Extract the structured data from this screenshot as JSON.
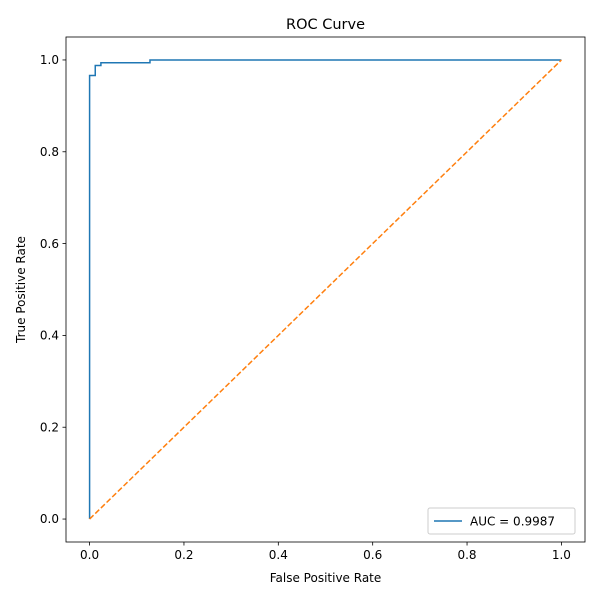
{
  "chart_data": {
    "type": "line",
    "title": "ROC Curve",
    "xlabel": "False Positive Rate",
    "ylabel": "True Positive Rate",
    "xlim": [
      -0.05,
      1.05
    ],
    "ylim": [
      -0.05,
      1.05
    ],
    "x_ticks": [
      0.0,
      0.2,
      0.4,
      0.6,
      0.8,
      1.0
    ],
    "x_tick_labels": [
      "0.0",
      "0.2",
      "0.4",
      "0.6",
      "0.8",
      "1.0"
    ],
    "y_ticks": [
      0.0,
      0.2,
      0.4,
      0.6,
      0.8,
      1.0
    ],
    "y_tick_labels": [
      "0.0",
      "0.2",
      "0.4",
      "0.6",
      "0.8",
      "1.0"
    ],
    "grid": false,
    "legend_position": "lower-right",
    "series": [
      {
        "name": "AUC = 0.9987",
        "color": "#1f77b4",
        "style": "solid",
        "show_in_legend": true,
        "x": [
          0.0,
          0.0,
          0.0,
          0.012,
          0.012,
          0.024,
          0.024,
          0.128,
          0.128,
          1.0
        ],
        "y": [
          0.0,
          0.966,
          0.966,
          0.966,
          0.988,
          0.988,
          0.994,
          0.994,
          1.0,
          1.0
        ]
      },
      {
        "color": "#ff7f0e",
        "style": "dashed",
        "show_in_legend": false,
        "x": [
          0.0,
          1.0
        ],
        "y": [
          0.0,
          1.0
        ]
      }
    ]
  }
}
